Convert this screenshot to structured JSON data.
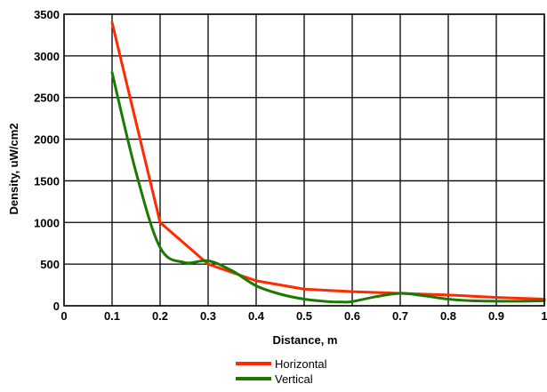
{
  "chart_data": {
    "type": "line",
    "xlabel": "Distance, m",
    "ylabel": "Density, uW/cm2",
    "xlim": [
      0,
      1
    ],
    "ylim": [
      0,
      3500
    ],
    "x_ticks": [
      "0",
      "0.1",
      "0.2",
      "0.3",
      "0.4",
      "0.5",
      "0.6",
      "0.7",
      "0.8",
      "0.9",
      "1"
    ],
    "y_ticks": [
      "0",
      "500",
      "1000",
      "1500",
      "2000",
      "2500",
      "3000",
      "3500"
    ],
    "grid": true,
    "legend_position": "bottom-center",
    "series": [
      {
        "name": "Horizontal",
        "color": "#ff2a00",
        "x": [
          0.1,
          0.2,
          0.3,
          0.4,
          0.5,
          0.6,
          0.7,
          0.8,
          0.9,
          1.0
        ],
        "y": [
          3400,
          1000,
          500,
          300,
          200,
          170,
          150,
          130,
          100,
          80
        ]
      },
      {
        "name": "Vertical",
        "color": "#1a7a00",
        "x": [
          0.1,
          0.15,
          0.2,
          0.25,
          0.3,
          0.35,
          0.4,
          0.45,
          0.5,
          0.55,
          0.58,
          0.6,
          0.65,
          0.7,
          0.75,
          0.8,
          0.85,
          0.9,
          0.95,
          1.0
        ],
        "y": [
          2800,
          1600,
          700,
          520,
          540,
          420,
          240,
          140,
          80,
          50,
          45,
          50,
          110,
          150,
          120,
          80,
          60,
          55,
          55,
          60
        ]
      }
    ]
  }
}
